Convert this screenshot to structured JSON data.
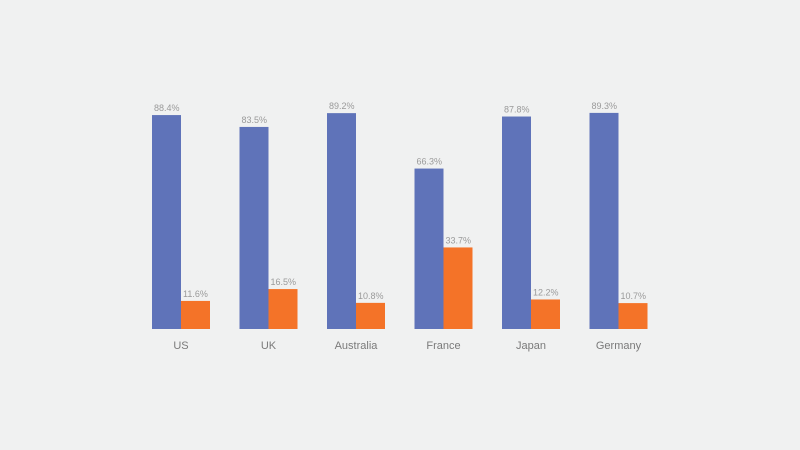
{
  "chart_data": {
    "type": "bar",
    "title": "",
    "xlabel": "",
    "ylabel": "",
    "ylim": [
      0,
      100
    ],
    "grid": false,
    "legend": "none",
    "categories": [
      "US",
      "UK",
      "Australia",
      "France",
      "Japan",
      "Germany"
    ],
    "series": [
      {
        "color": "#5f73b9",
        "values": [
          88.4,
          83.5,
          89.2,
          66.3,
          87.8,
          89.3
        ],
        "labels": [
          "88.4%",
          "83.5%",
          "89.2%",
          "66.3%",
          "87.8%",
          "89.3%"
        ]
      },
      {
        "color": "#f47328",
        "values": [
          11.6,
          16.5,
          10.8,
          33.7,
          12.2,
          10.7
        ],
        "labels": [
          "11.6%",
          "16.5%",
          "10.8%",
          "33.7%",
          "12.2%",
          "10.7%"
        ]
      }
    ]
  }
}
